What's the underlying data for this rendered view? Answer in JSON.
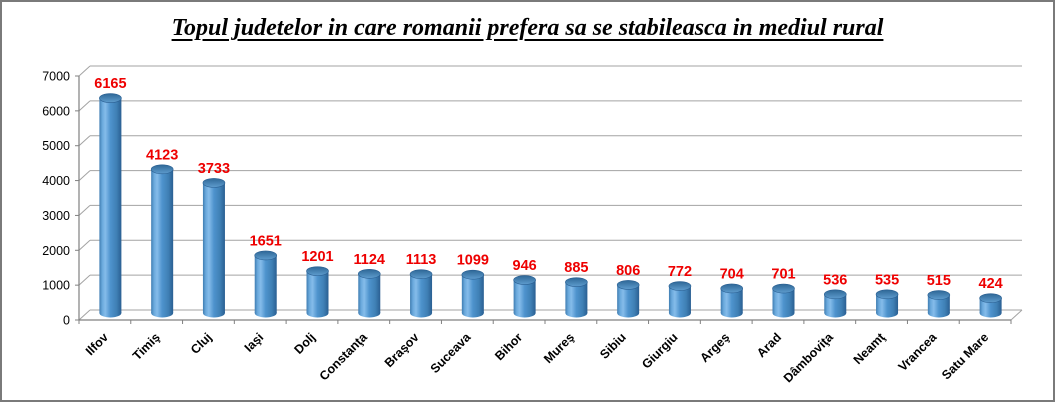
{
  "window": {
    "background": "#ffffff",
    "border_color": "#7a7a7a"
  },
  "chart_data": {
    "type": "bar",
    "style": "3d-cylinder-vertical",
    "title": "Topul judetelor in care romanii prefera sa se stabileasca in mediul rural",
    "categories": [
      "Ilfov",
      "Timiş",
      "Cluj",
      "Iaşi",
      "Dolj",
      "Constanţa",
      "Braşov",
      "Suceava",
      "Bihor",
      "Mureş",
      "Sibiu",
      "Giurgiu",
      "Argeş",
      "Arad",
      "Dâmboviţa",
      "Neamţ",
      "Vrancea",
      "Satu Mare"
    ],
    "values": [
      6165,
      4123,
      3733,
      1651,
      1201,
      1124,
      1113,
      1099,
      946,
      885,
      806,
      772,
      704,
      701,
      536,
      535,
      515,
      424
    ],
    "xlabel": "",
    "ylabel": "",
    "ylim": [
      0,
      7000
    ],
    "yticks": [
      0,
      1000,
      2000,
      3000,
      4000,
      5000,
      6000,
      7000
    ],
    "grid": true,
    "legend": false,
    "value_labels_shown": true,
    "x_labels_rotation_deg": -45,
    "colors": {
      "bar_main": "#4e93cd",
      "bar_highlight": "#85bcea",
      "bar_left_edge": "#3f7db2",
      "bar_dark_edge": "#2a5f92",
      "bar_top_back": "#2e6796",
      "bar_top_front": "#5e9cce",
      "value_label": "#ee0000",
      "gridline": "#a3a3a3",
      "axis": "#808080",
      "tick_text": "#000000"
    }
  }
}
